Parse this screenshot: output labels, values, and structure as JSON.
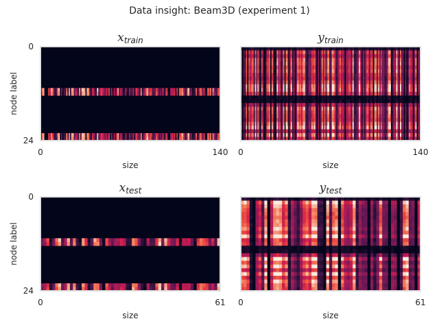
{
  "figure": {
    "suptitle": "Data insight: Beam3D (experiment 1)"
  },
  "colors": {
    "background": "#ffffff",
    "frame": "#e0e0e0",
    "text": "#262626",
    "colormap": "rocket"
  },
  "chart_data": [
    {
      "type": "heatmap",
      "id": "x_train",
      "title_main": "x",
      "title_sub": "train",
      "xlabel": "size",
      "ylabel": "node label",
      "xticks": [
        "0",
        "140"
      ],
      "yticks": [
        "0",
        "24"
      ],
      "x_range": [
        0,
        140
      ],
      "y_range": [
        0,
        24
      ],
      "rows": 25,
      "cols": 140,
      "pattern": "bands",
      "active_rows": [
        11,
        12,
        23,
        24
      ],
      "value_range": [
        0,
        1
      ]
    },
    {
      "type": "heatmap",
      "id": "y_train",
      "title_main": "y",
      "title_sub": "train",
      "xlabel": "size",
      "ylabel": "",
      "xticks": [
        "0",
        "140"
      ],
      "yticks": [],
      "x_range": [
        0,
        140
      ],
      "y_range": [
        0,
        24
      ],
      "rows": 25,
      "cols": 140,
      "pattern": "dense",
      "dark_rows": [
        13,
        14
      ],
      "value_range": [
        0,
        1
      ]
    },
    {
      "type": "heatmap",
      "id": "x_test",
      "title_main": "x",
      "title_sub": "test",
      "xlabel": "size",
      "ylabel": "node label",
      "xticks": [
        "0",
        "61"
      ],
      "yticks": [
        "0",
        "24"
      ],
      "x_range": [
        0,
        61
      ],
      "y_range": [
        0,
        24
      ],
      "rows": 25,
      "cols": 61,
      "pattern": "bands",
      "active_rows": [
        11,
        12,
        23,
        24
      ],
      "value_range": [
        0,
        1
      ]
    },
    {
      "type": "heatmap",
      "id": "y_test",
      "title_main": "y",
      "title_sub": "test",
      "xlabel": "size",
      "ylabel": "",
      "xticks": [
        "0",
        "61"
      ],
      "yticks": [],
      "x_range": [
        0,
        61
      ],
      "y_range": [
        0,
        24
      ],
      "rows": 25,
      "cols": 61,
      "pattern": "dense",
      "dark_rows": [
        13,
        14
      ],
      "value_range": [
        0,
        1
      ]
    }
  ]
}
